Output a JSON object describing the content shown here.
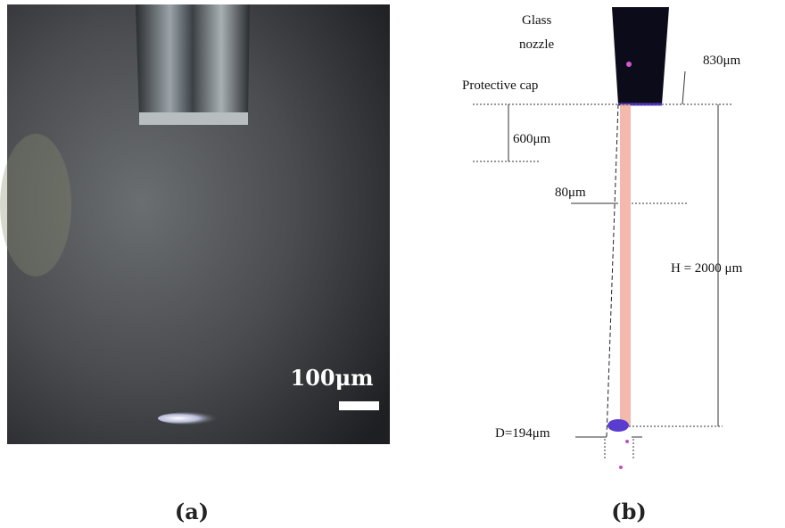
{
  "panel_a": {
    "scale_bar": "100μm",
    "caption": "(a)"
  },
  "panel_b": {
    "caption": "(b)",
    "labels": {
      "glass_nozzle": [
        "Glass",
        "nozzle"
      ],
      "protective_cap": "Protective cap",
      "cap_width": "830μm",
      "cap_height": "600μm",
      "beam_width": "80μm",
      "height": "H = 2000 μm",
      "diameter": "D=194μm"
    }
  }
}
